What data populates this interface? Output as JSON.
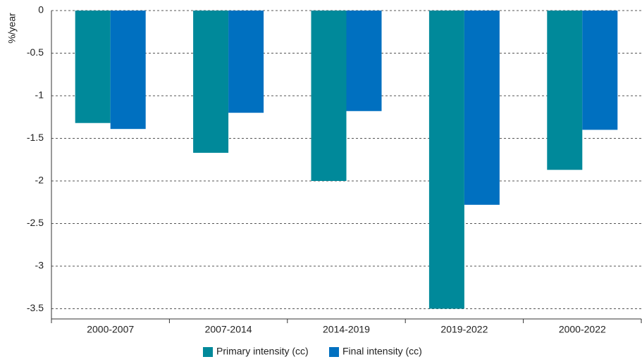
{
  "chart_data": {
    "type": "bar",
    "y_label": "%/year",
    "categories": [
      "2000-2007",
      "2007-2014",
      "2014-2019",
      "2019-2022",
      "2000-2022"
    ],
    "series": [
      {
        "name": "Primary intensity (cc)",
        "color": "#00899a",
        "values": [
          -1.32,
          -1.67,
          -2.0,
          -3.5,
          -1.87
        ]
      },
      {
        "name": "Final intensity (cc)",
        "color": "#0070c0",
        "values": [
          -1.39,
          -1.2,
          -1.18,
          -2.28,
          -1.4
        ]
      }
    ],
    "ylim": [
      -3.62,
      0
    ],
    "yticks": [
      0,
      -0.5,
      -1,
      -1.5,
      -2,
      -2.5,
      -3,
      -3.5
    ],
    "grid": true,
    "legend": "bottom"
  }
}
